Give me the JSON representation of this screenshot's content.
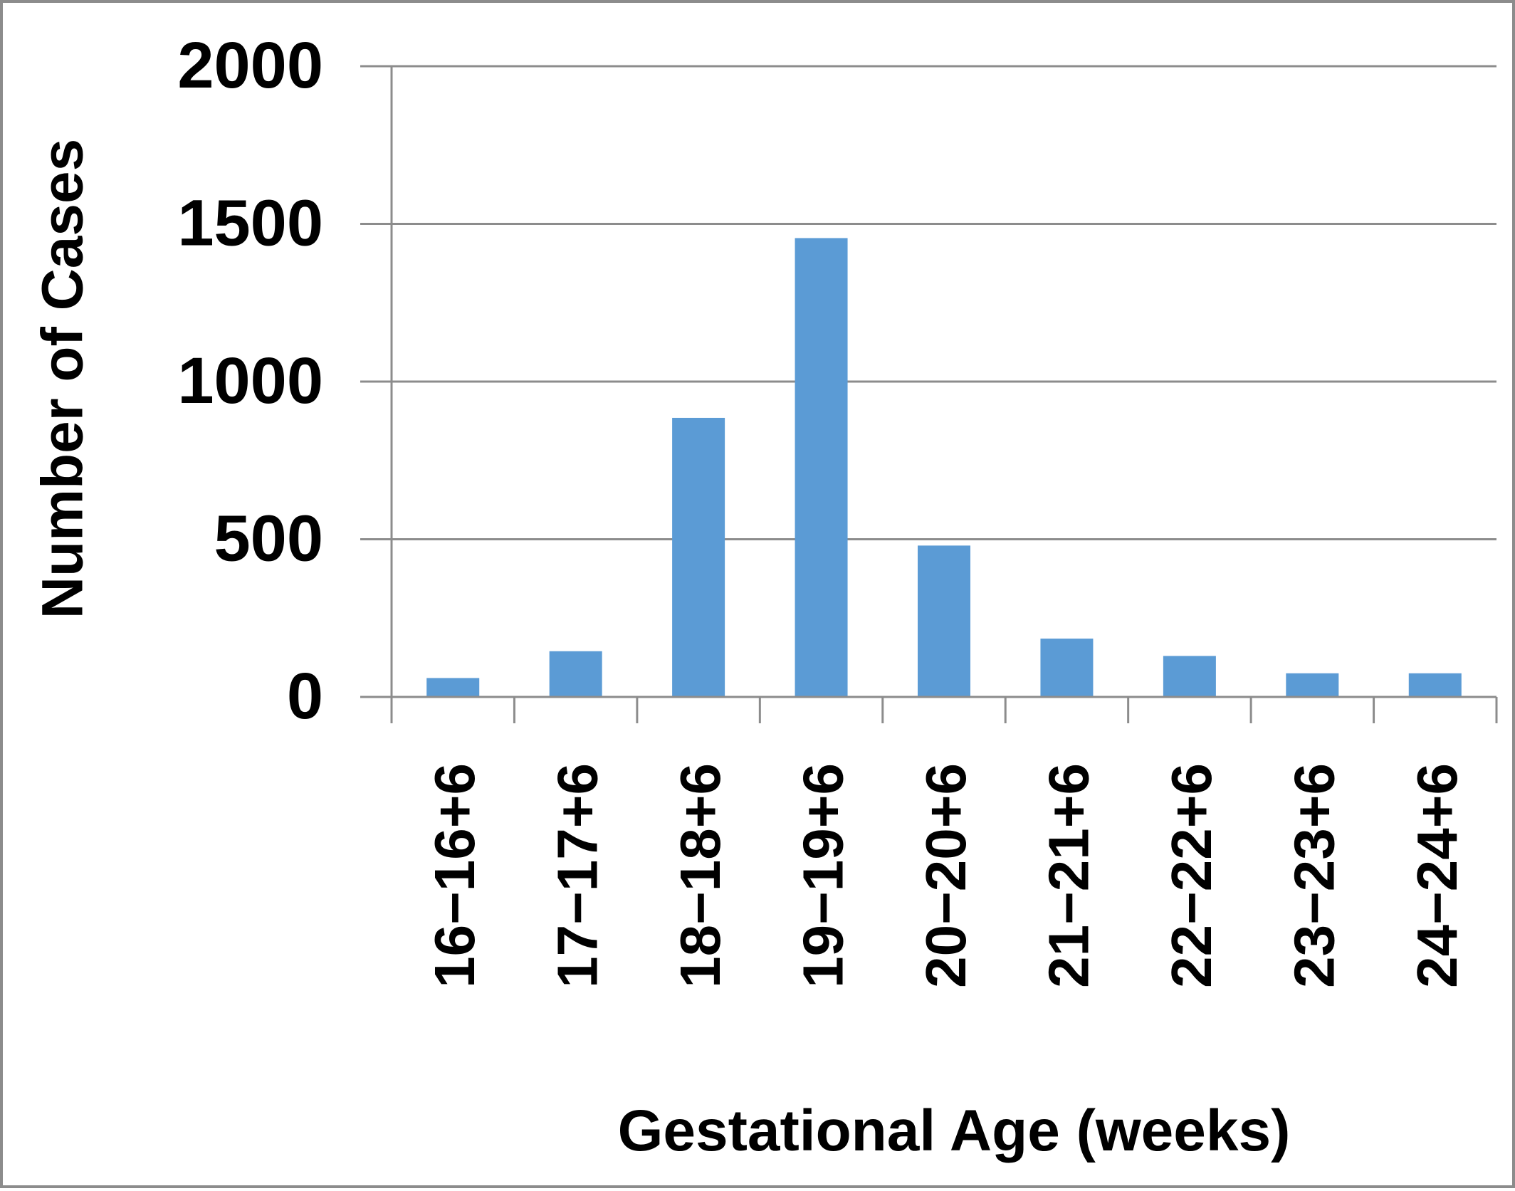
{
  "chart_data": {
    "type": "bar",
    "title": "",
    "xlabel": "Gestational Age (weeks)",
    "ylabel": "Number of Cases",
    "categories": [
      "16−16+6",
      "17−17+6",
      "18−18+6",
      "19−19+6",
      "20−20+6",
      "21−21+6",
      "22−22+6",
      "23−23+6",
      "24−24+6"
    ],
    "values": [
      60,
      145,
      885,
      1455,
      480,
      185,
      130,
      75,
      75
    ],
    "ylim": [
      0,
      2000
    ],
    "yticks": [
      "0",
      "500",
      "1000",
      "1500",
      "2000"
    ],
    "ytick_values": [
      0,
      500,
      1000,
      1500,
      2000
    ],
    "grid": true,
    "legend": "none",
    "colors": {
      "bar": "#5b9bd5",
      "grid": "#8c8c8c",
      "axis": "#8c8c8c",
      "frame": "#8c8c8c"
    }
  }
}
